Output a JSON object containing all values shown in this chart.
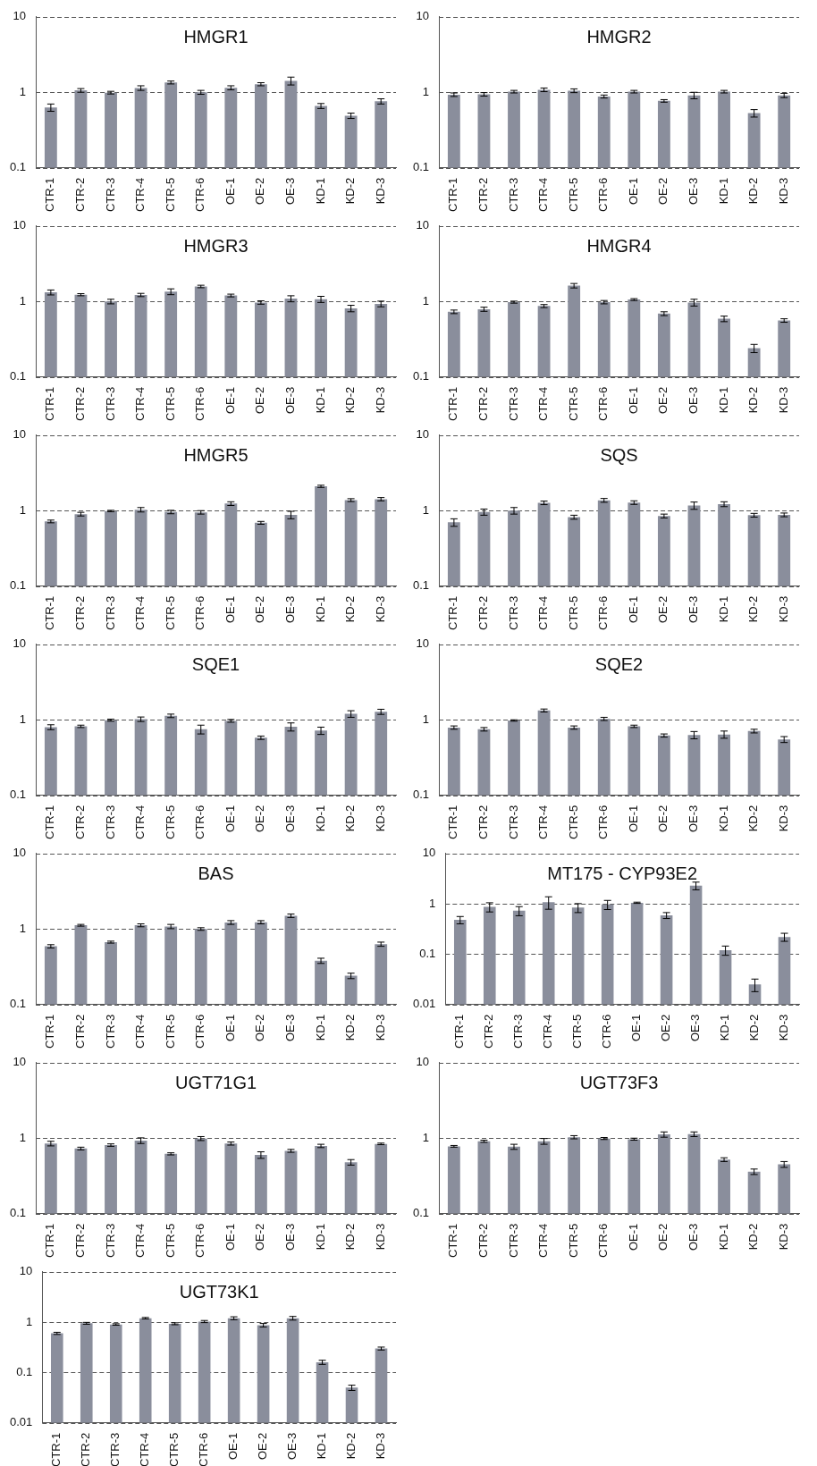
{
  "chart_data": [
    {
      "type": "bar",
      "title": "HMGR1",
      "categories": [
        "CTR-1",
        "CTR-2",
        "CTR-3",
        "CTR-4",
        "CTR-5",
        "CTR-6",
        "OE-1",
        "OE-2",
        "OE-3",
        "KD-1",
        "KD-2",
        "KD-3"
      ],
      "values": [
        0.63,
        1.06,
        0.99,
        1.14,
        1.35,
        1.0,
        1.15,
        1.28,
        1.42,
        0.66,
        0.49,
        0.76
      ],
      "errors": [
        0.07,
        0.06,
        0.04,
        0.08,
        0.06,
        0.06,
        0.07,
        0.06,
        0.17,
        0.05,
        0.04,
        0.06
      ],
      "color": "#8a8e9c",
      "ylim": [
        0.1,
        10
      ],
      "yticks": [
        0.1,
        1,
        10
      ],
      "log": true,
      "grid": "y"
    },
    {
      "type": "bar",
      "title": "HMGR2",
      "categories": [
        "CTR-1",
        "CTR-2",
        "CTR-3",
        "CTR-4",
        "CTR-5",
        "CTR-6",
        "OE-1",
        "OE-2",
        "OE-3",
        "KD-1",
        "KD-2",
        "KD-3"
      ],
      "values": [
        0.93,
        0.94,
        1.02,
        1.08,
        1.05,
        0.88,
        1.02,
        0.77,
        0.91,
        1.02,
        0.53,
        0.91
      ],
      "errors": [
        0.05,
        0.05,
        0.04,
        0.06,
        0.06,
        0.04,
        0.04,
        0.03,
        0.09,
        0.04,
        0.06,
        0.06
      ],
      "color": "#8a8e9c",
      "ylim": [
        0.1,
        10
      ],
      "yticks": [
        0.1,
        1,
        10
      ],
      "log": true,
      "grid": "y"
    },
    {
      "type": "bar",
      "title": "HMGR3",
      "categories": [
        "CTR-1",
        "CTR-2",
        "CTR-3",
        "CTR-4",
        "CTR-5",
        "CTR-6",
        "OE-1",
        "OE-2",
        "OE-3",
        "KD-1",
        "KD-2",
        "KD-3"
      ],
      "values": [
        1.32,
        1.23,
        1.0,
        1.22,
        1.35,
        1.58,
        1.2,
        0.97,
        1.09,
        1.07,
        0.81,
        0.93
      ],
      "errors": [
        0.1,
        0.04,
        0.07,
        0.06,
        0.12,
        0.06,
        0.05,
        0.05,
        0.1,
        0.1,
        0.08,
        0.08
      ],
      "color": "#8a8e9c",
      "ylim": [
        0.1,
        10
      ],
      "yticks": [
        0.1,
        1,
        10
      ],
      "log": true,
      "grid": "y"
    },
    {
      "type": "bar",
      "title": "HMGR4",
      "categories": [
        "CTR-1",
        "CTR-2",
        "CTR-3",
        "CTR-4",
        "CTR-5",
        "CTR-6",
        "OE-1",
        "OE-2",
        "OE-3",
        "KD-1",
        "KD-2",
        "KD-3"
      ],
      "values": [
        0.73,
        0.79,
        0.98,
        0.87,
        1.62,
        0.98,
        1.06,
        0.69,
        0.97,
        0.59,
        0.24,
        0.56
      ],
      "errors": [
        0.04,
        0.05,
        0.03,
        0.04,
        0.11,
        0.05,
        0.03,
        0.04,
        0.1,
        0.05,
        0.03,
        0.03
      ],
      "color": "#8a8e9c",
      "ylim": [
        0.1,
        10
      ],
      "yticks": [
        0.1,
        1,
        10
      ],
      "log": true,
      "grid": "y"
    },
    {
      "type": "bar",
      "title": "HMGR5",
      "categories": [
        "CTR-1",
        "CTR-2",
        "CTR-3",
        "CTR-4",
        "CTR-5",
        "CTR-6",
        "OE-1",
        "OE-2",
        "OE-3",
        "KD-1",
        "KD-2",
        "KD-3"
      ],
      "values": [
        0.72,
        0.9,
        0.99,
        1.03,
        0.96,
        0.95,
        1.24,
        0.69,
        0.88,
        2.1,
        1.38,
        1.42
      ],
      "errors": [
        0.03,
        0.05,
        0.02,
        0.07,
        0.05,
        0.05,
        0.07,
        0.03,
        0.1,
        0.07,
        0.06,
        0.07
      ],
      "color": "#8a8e9c",
      "ylim": [
        0.1,
        10
      ],
      "yticks": [
        0.1,
        1,
        10
      ],
      "log": true,
      "grid": "y"
    },
    {
      "type": "bar",
      "title": "SQS",
      "categories": [
        "CTR-1",
        "CTR-2",
        "CTR-3",
        "CTR-4",
        "CTR-5",
        "CTR-6",
        "OE-1",
        "OE-2",
        "OE-3",
        "KD-1",
        "KD-2",
        "KD-3"
      ],
      "values": [
        0.7,
        0.96,
        1.0,
        1.27,
        0.82,
        1.37,
        1.28,
        0.85,
        1.17,
        1.22,
        0.87,
        0.88
      ],
      "errors": [
        0.08,
        0.09,
        0.1,
        0.07,
        0.05,
        0.08,
        0.07,
        0.05,
        0.13,
        0.09,
        0.05,
        0.05
      ],
      "color": "#8a8e9c",
      "ylim": [
        0.1,
        10
      ],
      "yticks": [
        0.1,
        1,
        10
      ],
      "log": true,
      "grid": "y"
    },
    {
      "type": "bar",
      "title": "SQE1",
      "categories": [
        "CTR-1",
        "CTR-2",
        "CTR-3",
        "CTR-4",
        "CTR-5",
        "CTR-6",
        "OE-1",
        "OE-2",
        "OE-3",
        "KD-1",
        "KD-2",
        "KD-3"
      ],
      "values": [
        0.8,
        0.82,
        0.99,
        1.02,
        1.13,
        0.75,
        0.97,
        0.58,
        0.81,
        0.72,
        1.2,
        1.28
      ],
      "errors": [
        0.06,
        0.03,
        0.03,
        0.07,
        0.06,
        0.1,
        0.04,
        0.03,
        0.1,
        0.08,
        0.12,
        0.1
      ],
      "color": "#8a8e9c",
      "ylim": [
        0.1,
        10
      ],
      "yticks": [
        0.1,
        1,
        10
      ],
      "log": true,
      "grid": "y"
    },
    {
      "type": "bar",
      "title": "SQE2",
      "categories": [
        "CTR-1",
        "CTR-2",
        "CTR-3",
        "CTR-4",
        "CTR-5",
        "CTR-6",
        "OE-1",
        "OE-2",
        "OE-3",
        "KD-1",
        "KD-2",
        "KD-3"
      ],
      "values": [
        0.79,
        0.75,
        0.98,
        1.33,
        0.79,
        1.03,
        0.82,
        0.62,
        0.63,
        0.64,
        0.71,
        0.55
      ],
      "errors": [
        0.04,
        0.04,
        0.02,
        0.06,
        0.04,
        0.05,
        0.03,
        0.03,
        0.07,
        0.07,
        0.04,
        0.05
      ],
      "color": "#8a8e9c",
      "ylim": [
        0.1,
        10
      ],
      "yticks": [
        0.1,
        1,
        10
      ],
      "log": true,
      "grid": "y"
    },
    {
      "type": "bar",
      "title": "BAS",
      "categories": [
        "CTR-1",
        "CTR-2",
        "CTR-3",
        "CTR-4",
        "CTR-5",
        "CTR-6",
        "OE-1",
        "OE-2",
        "OE-3",
        "KD-1",
        "KD-2",
        "KD-3"
      ],
      "values": [
        0.59,
        1.12,
        0.67,
        1.12,
        1.08,
        1.0,
        1.22,
        1.23,
        1.5,
        0.38,
        0.24,
        0.63
      ],
      "errors": [
        0.03,
        0.03,
        0.02,
        0.05,
        0.07,
        0.04,
        0.07,
        0.06,
        0.08,
        0.03,
        0.02,
        0.04
      ],
      "color": "#8a8e9c",
      "ylim": [
        0.1,
        10
      ],
      "yticks": [
        0.1,
        1,
        10
      ],
      "log": true,
      "grid": "y"
    },
    {
      "type": "bar",
      "title": "MT175 - CYP93E2",
      "categories": [
        "CTR-1",
        "CTR-2",
        "CTR-3",
        "CTR-4",
        "CTR-5",
        "CTR-6",
        "OE-1",
        "OE-2",
        "OE-3",
        "KD-1",
        "KD-2",
        "KD-3"
      ],
      "values": [
        0.48,
        0.87,
        0.73,
        1.08,
        0.84,
        0.97,
        1.05,
        0.59,
        2.3,
        0.12,
        0.025,
        0.22
      ],
      "errors": [
        0.08,
        0.18,
        0.15,
        0.3,
        0.17,
        0.2,
        0.03,
        0.08,
        0.4,
        0.025,
        0.007,
        0.04
      ],
      "color": "#8a8e9c",
      "ylim": [
        0.01,
        10
      ],
      "yticks": [
        0.01,
        0.1,
        1,
        10
      ],
      "log": true,
      "grid": "y"
    },
    {
      "type": "bar",
      "title": "UGT71G1",
      "categories": [
        "CTR-1",
        "CTR-2",
        "CTR-3",
        "CTR-4",
        "CTR-5",
        "CTR-6",
        "OE-1",
        "OE-2",
        "OE-3",
        "KD-1",
        "KD-2",
        "KD-3"
      ],
      "values": [
        0.85,
        0.73,
        0.81,
        0.93,
        0.62,
        0.99,
        0.85,
        0.6,
        0.68,
        0.79,
        0.48,
        0.84
      ],
      "errors": [
        0.06,
        0.03,
        0.03,
        0.08,
        0.02,
        0.06,
        0.04,
        0.06,
        0.03,
        0.04,
        0.04,
        0.02
      ],
      "color": "#8a8e9c",
      "ylim": [
        0.1,
        10
      ],
      "yticks": [
        0.1,
        1,
        10
      ],
      "log": true,
      "grid": "y"
    },
    {
      "type": "bar",
      "title": "UGT73F3",
      "categories": [
        "CTR-1",
        "CTR-2",
        "CTR-3",
        "CTR-4",
        "CTR-5",
        "CTR-6",
        "OE-1",
        "OE-2",
        "OE-3",
        "KD-1",
        "KD-2",
        "KD-3"
      ],
      "values": [
        0.78,
        0.91,
        0.77,
        0.91,
        1.03,
        0.99,
        0.97,
        1.12,
        1.13,
        0.52,
        0.36,
        0.45
      ],
      "errors": [
        0.02,
        0.03,
        0.06,
        0.08,
        0.05,
        0.03,
        0.03,
        0.09,
        0.08,
        0.03,
        0.03,
        0.04
      ],
      "color": "#8a8e9c",
      "ylim": [
        0.1,
        10
      ],
      "yticks": [
        0.1,
        1,
        10
      ],
      "log": true,
      "grid": "y"
    },
    {
      "type": "bar",
      "title": "UGT73K1",
      "categories": [
        "CTR-1",
        "CTR-2",
        "CTR-3",
        "CTR-4",
        "CTR-5",
        "CTR-6",
        "OE-1",
        "OE-2",
        "OE-3",
        "KD-1",
        "KD-2",
        "KD-3"
      ],
      "values": [
        0.6,
        0.95,
        0.9,
        1.2,
        0.93,
        1.03,
        1.2,
        0.87,
        1.2,
        0.16,
        0.05,
        0.3
      ],
      "errors": [
        0.03,
        0.04,
        0.03,
        0.04,
        0.04,
        0.05,
        0.08,
        0.07,
        0.1,
        0.015,
        0.006,
        0.02
      ],
      "color": "#8a8e9c",
      "ylim": [
        0.01,
        10
      ],
      "yticks": [
        0.01,
        0.1,
        1,
        10
      ],
      "log": true,
      "grid": "y"
    }
  ]
}
